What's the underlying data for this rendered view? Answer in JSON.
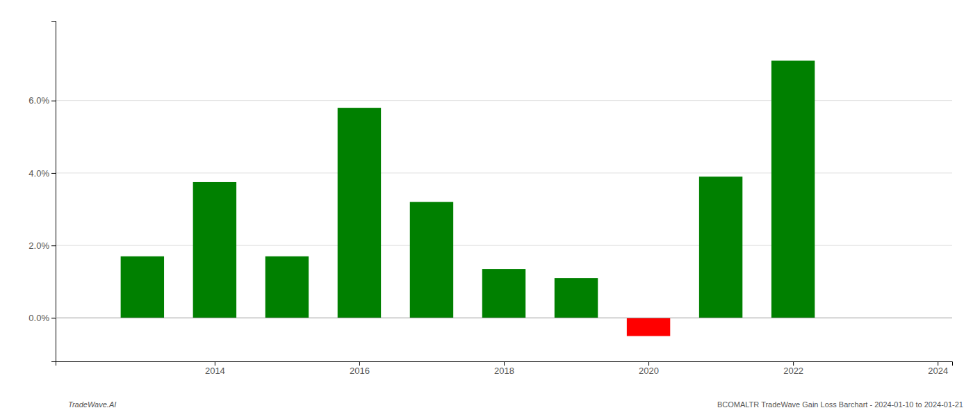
{
  "chart_data": {
    "type": "bar",
    "x": [
      2013,
      2014,
      2015,
      2016,
      2017,
      2018,
      2019,
      2020,
      2021,
      2022
    ],
    "values": [
      0.017,
      0.0375,
      0.017,
      0.058,
      0.032,
      0.0135,
      0.011,
      -0.005,
      0.039,
      0.071
    ],
    "colors": [
      "#008000",
      "#008000",
      "#008000",
      "#008000",
      "#008000",
      "#008000",
      "#008000",
      "#ff0000",
      "#008000",
      "#008000"
    ],
    "xlim": [
      2011.8,
      2024.2
    ],
    "xticks": [
      2014,
      2016,
      2018,
      2020,
      2022,
      2024
    ],
    "ylim": [
      -0.012,
      0.082
    ],
    "yticks": [
      {
        "value": 0.0,
        "label": "0.0%"
      },
      {
        "value": 0.02,
        "label": "2.0%"
      },
      {
        "value": 0.04,
        "label": "4.0%"
      },
      {
        "value": 0.06,
        "label": "6.0%"
      }
    ],
    "grid": true,
    "annotations": [
      "TradeWave.AI",
      "BCOMALTR TradeWave Gain Loss Barchart - 2024-01-10 to 2024-01-21"
    ]
  }
}
